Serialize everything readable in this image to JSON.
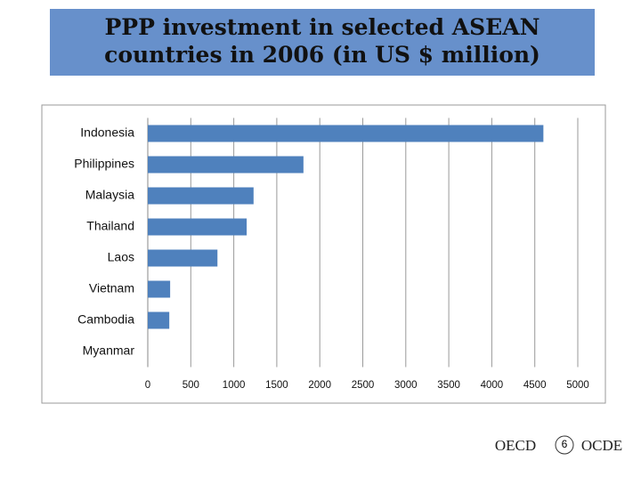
{
  "chart_data": {
    "type": "barh",
    "title": "PPP investment in selected ASEAN countries in 2006 (in US $ million)",
    "categories": [
      "Indonesia",
      "Philippines",
      "Malaysia",
      "Thailand",
      "Laos",
      "Vietnam",
      "Cambodia",
      "Myanmar"
    ],
    "values": [
      4600,
      1810,
      1230,
      1150,
      810,
      260,
      250,
      0
    ],
    "color": "#4f81bd",
    "xlim": [
      0,
      5000
    ],
    "xticks": [
      0,
      500,
      1000,
      1500,
      2000,
      2500,
      3000,
      3500,
      4000,
      4500,
      5000
    ],
    "grid": true
  },
  "footer": {
    "logo_left": "OECD",
    "page": "6",
    "logo_right": "OCDE"
  }
}
